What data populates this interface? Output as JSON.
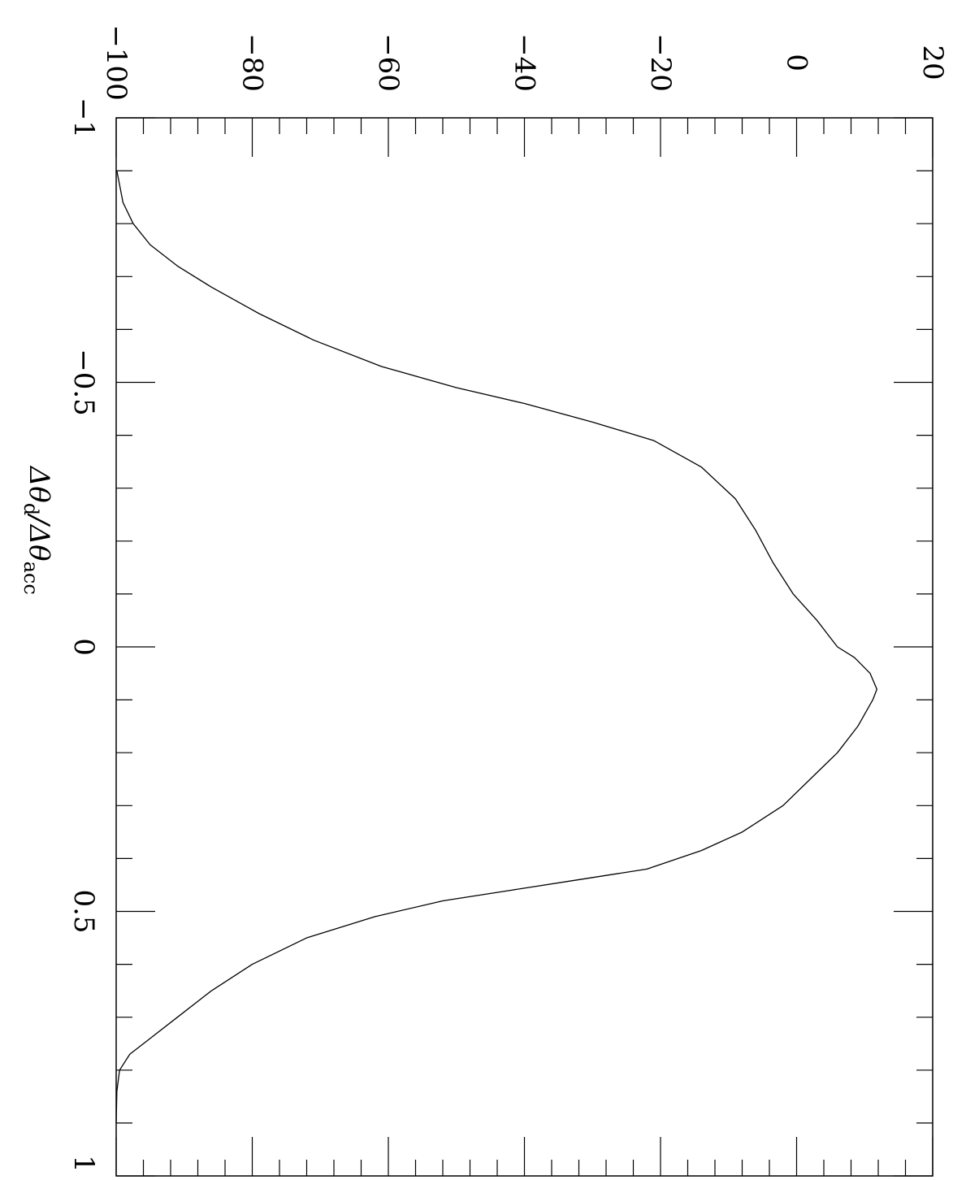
{
  "chart_data": {
    "type": "line",
    "title": "",
    "xlabel": "",
    "ylabel": {
      "main": "Δθ",
      "sub1": "d",
      "slash": "/Δθ",
      "sub2": "acc"
    },
    "xlim": [
      -100,
      20
    ],
    "ylim": [
      -1,
      1
    ],
    "x_ticks_major": [
      -100,
      -80,
      -60,
      -40,
      -20,
      0,
      20
    ],
    "x_tick_labels": [
      "−100",
      "−80",
      "−60",
      "−40",
      "−20",
      "0",
      "20"
    ],
    "y_ticks_major": [
      -1,
      -0.5,
      0,
      0.5,
      1
    ],
    "y_tick_labels": [
      "−1",
      "−0.5",
      "0",
      "0.5",
      "1"
    ],
    "grid": false,
    "series": [
      {
        "points": [
          [
            -99.9,
            -0.9
          ],
          [
            -99.0,
            -0.84
          ],
          [
            -97.5,
            -0.8
          ],
          [
            -95.0,
            -0.76
          ],
          [
            -91.0,
            -0.72
          ],
          [
            -86.0,
            -0.68
          ],
          [
            -79.0,
            -0.63
          ],
          [
            -71.0,
            -0.58
          ],
          [
            -61.0,
            -0.53
          ],
          [
            -50.0,
            -0.49
          ],
          [
            -40.0,
            -0.46
          ],
          [
            -30.0,
            -0.425
          ],
          [
            -21.0,
            -0.39
          ],
          [
            -14.0,
            -0.34
          ],
          [
            -9.0,
            -0.28
          ],
          [
            -6.0,
            -0.22
          ],
          [
            -3.5,
            -0.16
          ],
          [
            -0.5,
            -0.1
          ],
          [
            3.0,
            -0.05
          ],
          [
            6.0,
            0.0
          ],
          [
            8.5,
            0.02
          ],
          [
            10.8,
            0.05
          ],
          [
            11.8,
            0.08
          ],
          [
            11.2,
            0.1
          ],
          [
            9.0,
            0.15
          ],
          [
            6.0,
            0.2
          ],
          [
            2.0,
            0.25
          ],
          [
            -2.0,
            0.3
          ],
          [
            -8.0,
            0.35
          ],
          [
            -14.0,
            0.385
          ],
          [
            -22.0,
            0.42
          ],
          [
            -32.0,
            0.44
          ],
          [
            -42.0,
            0.46
          ],
          [
            -52.0,
            0.48
          ],
          [
            -62.0,
            0.51
          ],
          [
            -72.0,
            0.55
          ],
          [
            -80.0,
            0.6
          ],
          [
            -86.0,
            0.65
          ],
          [
            -91.0,
            0.7
          ],
          [
            -95.0,
            0.74
          ],
          [
            -98.0,
            0.77
          ],
          [
            -99.5,
            0.8
          ],
          [
            -99.9,
            0.84
          ],
          [
            -100.0,
            0.9
          ]
        ]
      }
    ]
  }
}
